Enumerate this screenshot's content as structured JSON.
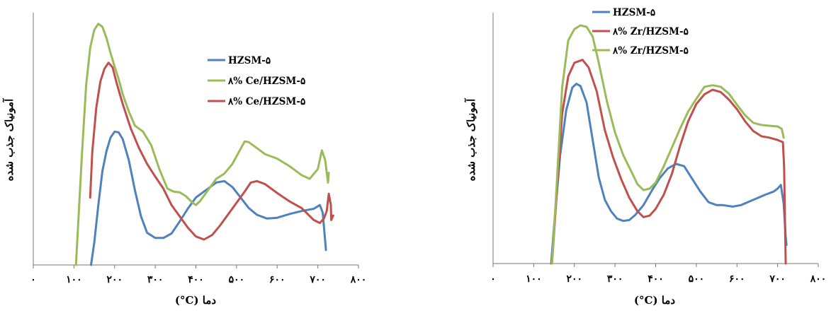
{
  "chart_data": [
    {
      "type": "line",
      "xlabel": "(°C) دما",
      "ylabel": "آمونیاک جذب شده",
      "xlim": [
        0,
        800
      ],
      "x_ticks": [
        0,
        100,
        200,
        300,
        400,
        500,
        600,
        700,
        800
      ],
      "x_tick_labels": [
        "۰",
        "۱۰۰",
        "۲۰۰",
        "۳۰۰",
        "۴۰۰",
        "۵۰۰",
        "۶۰۰",
        "۷۰۰",
        "۸۰۰"
      ],
      "legend_position": "top-right",
      "series": [
        {
          "name": "HZSM-۵",
          "color": "#4f81bd",
          "points": [
            [
              142,
              0
            ],
            [
              150,
              30
            ],
            [
              160,
              80
            ],
            [
              170,
              125
            ],
            [
              180,
              152
            ],
            [
              190,
              170
            ],
            [
              200,
              178
            ],
            [
              210,
              177
            ],
            [
              220,
              168
            ],
            [
              235,
              140
            ],
            [
              250,
              100
            ],
            [
              265,
              65
            ],
            [
              280,
              43
            ],
            [
              300,
              36
            ],
            [
              320,
              36
            ],
            [
              340,
              42
            ],
            [
              360,
              58
            ],
            [
              380,
              75
            ],
            [
              400,
              90
            ],
            [
              420,
              98
            ],
            [
              450,
              110
            ],
            [
              470,
              112
            ],
            [
              490,
              104
            ],
            [
              510,
              90
            ],
            [
              530,
              76
            ],
            [
              550,
              67
            ],
            [
              575,
              62
            ],
            [
              600,
              63
            ],
            [
              630,
              68
            ],
            [
              660,
              72
            ],
            [
              690,
              75
            ],
            [
              705,
              80
            ],
            [
              712,
              70
            ],
            [
              720,
              20
            ]
          ]
        },
        {
          "name": "۸% Ce/HZSM-۵",
          "color": "#9bbb59",
          "points": [
            [
              105,
              0
            ],
            [
              110,
              50
            ],
            [
              120,
              150
            ],
            [
              130,
              240
            ],
            [
              140,
              290
            ],
            [
              150,
              314
            ],
            [
              160,
              322
            ],
            [
              170,
              318
            ],
            [
              180,
              303
            ],
            [
              190,
              283
            ],
            [
              200,
              265
            ],
            [
              210,
              248
            ],
            [
              220,
              228
            ],
            [
              235,
              205
            ],
            [
              250,
              186
            ],
            [
              270,
              178
            ],
            [
              290,
              160
            ],
            [
              310,
              128
            ],
            [
              330,
              102
            ],
            [
              345,
              98
            ],
            [
              360,
              97
            ],
            [
              375,
              92
            ],
            [
              390,
              84
            ],
            [
              400,
              80
            ],
            [
              410,
              85
            ],
            [
              430,
              100
            ],
            [
              450,
              115
            ],
            [
              470,
              122
            ],
            [
              490,
              135
            ],
            [
              510,
              155
            ],
            [
              520,
              165
            ],
            [
              530,
              164
            ],
            [
              550,
              156
            ],
            [
              570,
              148
            ],
            [
              600,
              142
            ],
            [
              630,
              132
            ],
            [
              660,
              120
            ],
            [
              680,
              115
            ],
            [
              700,
              128
            ],
            [
              710,
              153
            ],
            [
              718,
              140
            ],
            [
              725,
              110
            ],
            [
              727,
              123
            ]
          ]
        },
        {
          "name": "۸% Ce/HZSM-۵",
          "color": "#c0504d",
          "points": [
            [
              140,
              90
            ],
            [
              145,
              150
            ],
            [
              155,
              210
            ],
            [
              165,
              245
            ],
            [
              175,
              262
            ],
            [
              185,
              270
            ],
            [
              195,
              264
            ],
            [
              205,
              243
            ],
            [
              220,
              215
            ],
            [
              240,
              182
            ],
            [
              260,
              156
            ],
            [
              280,
              135
            ],
            [
              300,
              118
            ],
            [
              320,
              102
            ],
            [
              340,
              80
            ],
            [
              360,
              65
            ],
            [
              380,
              50
            ],
            [
              400,
              38
            ],
            [
              420,
              34
            ],
            [
              440,
              40
            ],
            [
              460,
              53
            ],
            [
              480,
              68
            ],
            [
              500,
              83
            ],
            [
              520,
              98
            ],
            [
              535,
              110
            ],
            [
              550,
              112
            ],
            [
              570,
              108
            ],
            [
              600,
              96
            ],
            [
              630,
              85
            ],
            [
              660,
              76
            ],
            [
              690,
              60
            ],
            [
              705,
              56
            ],
            [
              715,
              62
            ],
            [
              722,
              72
            ],
            [
              727,
              95
            ],
            [
              732,
              80
            ],
            [
              733,
              60
            ],
            [
              738,
              66
            ]
          ]
        }
      ]
    },
    {
      "type": "line",
      "xlabel": "(°C) دما",
      "ylabel": "آمونیاک جذب شده",
      "xlim": [
        0,
        800
      ],
      "x_ticks": [
        0,
        100,
        200,
        300,
        400,
        500,
        600,
        700,
        800
      ],
      "x_tick_labels": [
        "۰",
        "۱۰۰",
        "۲۰۰",
        "۳۰۰",
        "۴۰۰",
        "۵۰۰",
        "۶۰۰",
        "۷۰۰",
        "۸۰۰"
      ],
      "legend_position": "top",
      "series": [
        {
          "name": "HZSM-۵",
          "color": "#4f81bd",
          "points": [
            [
              143,
              0
            ],
            [
              150,
              50
            ],
            [
              165,
              145
            ],
            [
              180,
              205
            ],
            [
              195,
              235
            ],
            [
              205,
              240
            ],
            [
              215,
              237
            ],
            [
              230,
              215
            ],
            [
              245,
              165
            ],
            [
              260,
              115
            ],
            [
              275,
              85
            ],
            [
              290,
              70
            ],
            [
              305,
              60
            ],
            [
              320,
              57
            ],
            [
              335,
              58
            ],
            [
              350,
              65
            ],
            [
              370,
              78
            ],
            [
              390,
              97
            ],
            [
              410,
              114
            ],
            [
              430,
              127
            ],
            [
              450,
              133
            ],
            [
              470,
              130
            ],
            [
              490,
              113
            ],
            [
              510,
              96
            ],
            [
              530,
              82
            ],
            [
              550,
              78
            ],
            [
              565,
              78
            ],
            [
              590,
              76
            ],
            [
              610,
              78
            ],
            [
              640,
              85
            ],
            [
              670,
              92
            ],
            [
              690,
              96
            ],
            [
              700,
              100
            ],
            [
              708,
              105
            ],
            [
              715,
              80
            ],
            [
              720,
              35
            ],
            [
              722,
              25
            ]
          ]
        },
        {
          "name": "۸% Zr/HZSM-۵",
          "color": "#c0504d",
          "points": [
            [
              145,
              0
            ],
            [
              155,
              80
            ],
            [
              170,
              200
            ],
            [
              185,
              250
            ],
            [
              200,
              268
            ],
            [
              220,
              272
            ],
            [
              235,
              262
            ],
            [
              255,
              230
            ],
            [
              275,
              178
            ],
            [
              295,
              142
            ],
            [
              315,
              113
            ],
            [
              335,
              88
            ],
            [
              355,
              70
            ],
            [
              370,
              62
            ],
            [
              385,
              64
            ],
            [
              400,
              73
            ],
            [
              420,
              92
            ],
            [
              440,
              120
            ],
            [
              460,
              157
            ],
            [
              480,
              190
            ],
            [
              500,
              213
            ],
            [
              520,
              226
            ],
            [
              540,
              232
            ],
            [
              560,
              229
            ],
            [
              580,
              219
            ],
            [
              600,
              206
            ],
            [
              620,
              190
            ],
            [
              640,
              177
            ],
            [
              660,
              170
            ],
            [
              680,
              168
            ],
            [
              700,
              165
            ],
            [
              713,
              162
            ],
            [
              716,
              130
            ],
            [
              718,
              60
            ],
            [
              720,
              0
            ]
          ]
        },
        {
          "name": "۸% Zr/HZSM-۵",
          "color": "#9bbb59",
          "points": [
            [
              145,
              0
            ],
            [
              155,
              90
            ],
            [
              170,
              235
            ],
            [
              185,
              298
            ],
            [
              200,
              313
            ],
            [
              215,
              318
            ],
            [
              230,
              316
            ],
            [
              245,
              303
            ],
            [
              260,
              268
            ],
            [
              280,
              217
            ],
            [
              300,
              175
            ],
            [
              320,
              145
            ],
            [
              340,
              123
            ],
            [
              355,
              106
            ],
            [
              370,
              98
            ],
            [
              385,
              100
            ],
            [
              400,
              108
            ],
            [
              420,
              130
            ],
            [
              440,
              155
            ],
            [
              460,
              180
            ],
            [
              480,
              203
            ],
            [
              500,
              220
            ],
            [
              520,
              236
            ],
            [
              540,
              238
            ],
            [
              560,
              236
            ],
            [
              580,
              227
            ],
            [
              600,
              212
            ],
            [
              620,
              198
            ],
            [
              640,
              188
            ],
            [
              660,
              185
            ],
            [
              680,
              184
            ],
            [
              700,
              183
            ],
            [
              710,
              180
            ],
            [
              715,
              168
            ]
          ]
        }
      ]
    }
  ]
}
